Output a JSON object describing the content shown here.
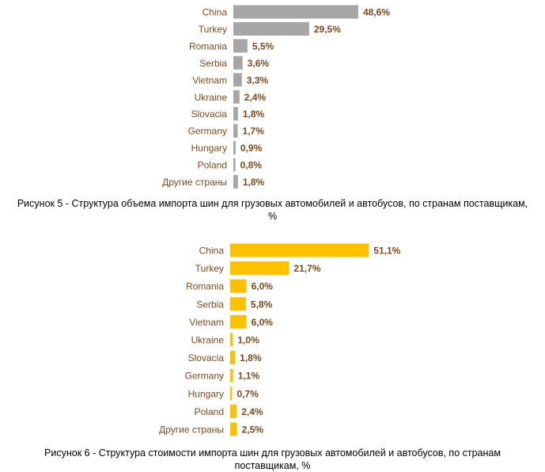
{
  "colors": {
    "label": "#7a4a1f",
    "background": "#ffffff"
  },
  "chart_data": [
    {
      "type": "bar",
      "orientation": "horizontal",
      "categories": [
        "China",
        "Turkey",
        "Romania",
        "Serbia",
        "Vietnam",
        "Ukraine",
        "Slovacia",
        "Germany",
        "Hungary",
        "Poland",
        "Другие страны"
      ],
      "values": [
        48.6,
        29.5,
        5.5,
        3.6,
        3.3,
        2.4,
        1.8,
        1.7,
        0.9,
        0.8,
        1.8
      ],
      "value_labels": [
        "48,6%",
        "29,5%",
        "5,5%",
        "3,6%",
        "3,3%",
        "2,4%",
        "1,8%",
        "1,7%",
        "0,9%",
        "0,8%",
        "1,8%"
      ],
      "bar_color": "#a6a6a6",
      "caption": "Рисунок 5 - Структура объема импорта шин для грузовых автомобилей и автобусов, по странам поставщикам, %",
      "grid": false,
      "legend": "none"
    },
    {
      "type": "bar",
      "orientation": "horizontal",
      "categories": [
        "China",
        "Turkey",
        "Romania",
        "Serbia",
        "Vietnam",
        "Ukraine",
        "Slovacia",
        "Germany",
        "Hungary",
        "Poland",
        "Другие страны"
      ],
      "values": [
        51.1,
        21.7,
        6.0,
        5.8,
        6.0,
        1.0,
        1.8,
        1.1,
        0.7,
        2.4,
        2.5
      ],
      "value_labels": [
        "51,1%",
        "21,7%",
        "6,0%",
        "5,8%",
        "6,0%",
        "1,0%",
        "1,8%",
        "1,1%",
        "0,7%",
        "2,4%",
        "2,5%"
      ],
      "bar_color": "#ffc000",
      "caption": "Рисунок 6 - Структура стоимости импорта шин для грузовых автомобилей и автобусов, по странам поставщикам, %",
      "grid": false,
      "legend": "none"
    }
  ]
}
